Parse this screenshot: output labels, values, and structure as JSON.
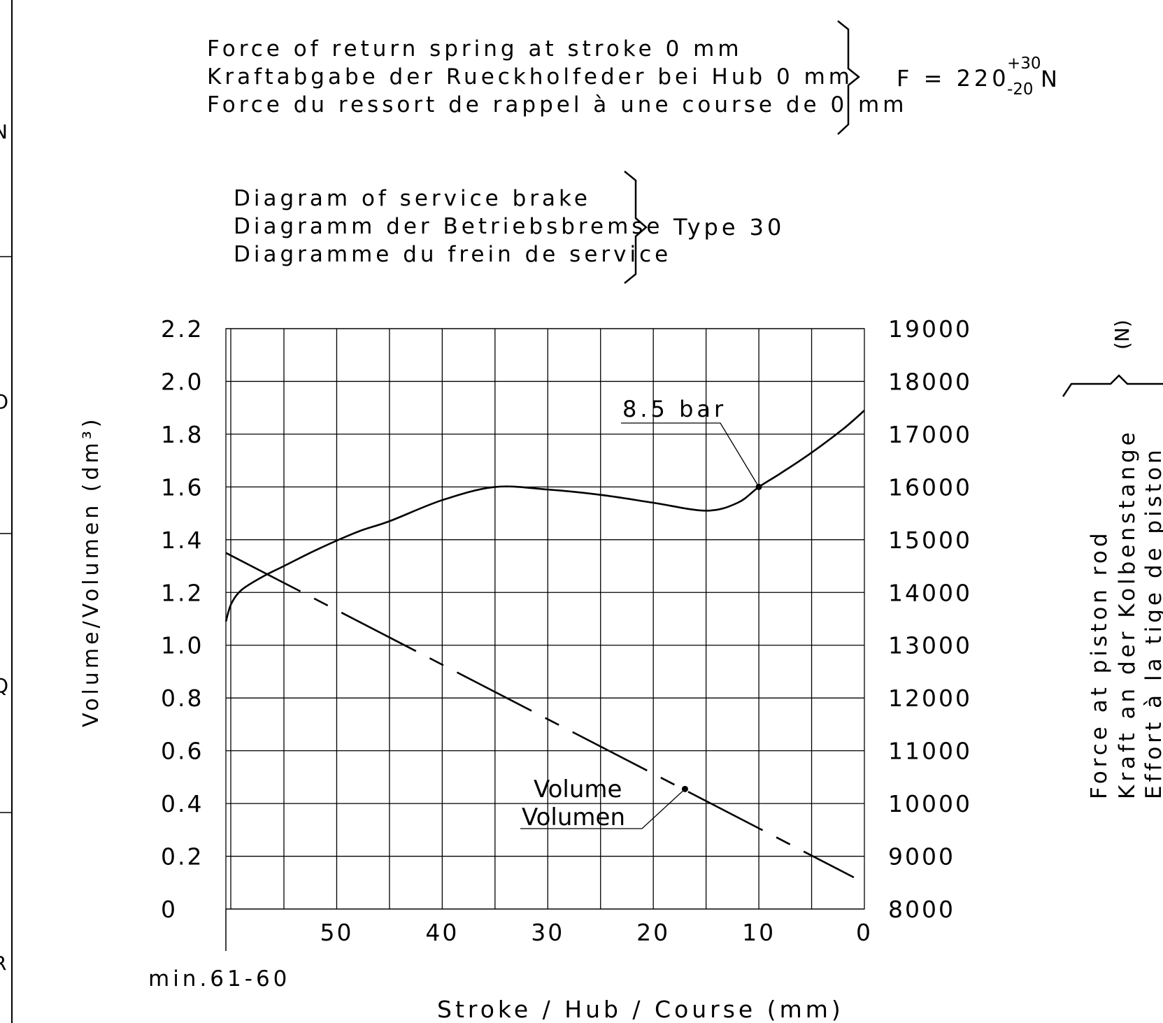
{
  "notes": {
    "spring_lines": [
      "Force of return spring at stroke 0 mm",
      "Kraftabgabe der Rueckholfeder bei Hub 0 mm",
      "Force du ressort de rappel à une course de 0 mm"
    ],
    "spring_value": "F = 220",
    "spring_tol_upper": "+30",
    "spring_tol_lower": "-20",
    "spring_unit": "N",
    "diagram_lines": [
      "Diagram of service brake",
      "Diagramm der Betriebsbremse",
      "Diagramme du frein de service"
    ],
    "type_label": "Type 30"
  },
  "frame": {
    "margin_marks": [
      "N",
      "O",
      "Q",
      "R"
    ]
  },
  "chart_data": {
    "type": "line",
    "x_axis": {
      "label": "Stroke / Hub  / Course (mm)",
      "ticks": [
        50,
        40,
        30,
        20,
        10,
        0
      ],
      "range": [
        60.5,
        0
      ],
      "extra_label": "min.61-60"
    },
    "y_left": {
      "label": "Volume/Volumen (dm³)",
      "ticks": [
        "0",
        "0.2",
        "0.4",
        "0.6",
        "0.8",
        "1.0",
        "1.2",
        "1.4",
        "1.6",
        "1.8",
        "2.0",
        "2.2"
      ],
      "range": [
        0,
        2.2
      ]
    },
    "y_right": {
      "label_lines": [
        "Force at piston rod",
        "Kraft an der Kolbenstange",
        "Effort à la tige de piston"
      ],
      "unit": "(N)",
      "ticks": [
        "8000",
        "9000",
        "10000",
        "11000",
        "12000",
        "13000",
        "14000",
        "15000",
        "16000",
        "17000",
        "18000",
        "19000"
      ],
      "range": [
        8000,
        19000
      ]
    },
    "series": [
      {
        "name": "8.5 bar",
        "axis": "right",
        "style": "solid",
        "marker": {
          "x": 10,
          "y": 16000
        },
        "x": [
          60.5,
          60,
          59,
          57,
          55,
          52,
          48,
          45,
          40,
          35,
          30,
          25,
          20,
          15,
          12,
          10,
          8,
          5,
          2,
          0
        ],
        "y": [
          13450,
          13780,
          14050,
          14300,
          14500,
          14800,
          15150,
          15350,
          15750,
          16000,
          15950,
          15850,
          15700,
          15550,
          15700,
          16000,
          16250,
          16650,
          17100,
          17450
        ]
      },
      {
        "name": "Volume Volumen",
        "label_lines": [
          "Volume",
          "Volumen"
        ],
        "axis": "left",
        "style": "dash-dot",
        "marker": {
          "x": 17,
          "y": 0.455
        },
        "x": [
          60.5,
          1
        ],
        "y": [
          1.35,
          0.12
        ]
      }
    ],
    "grid": true
  }
}
